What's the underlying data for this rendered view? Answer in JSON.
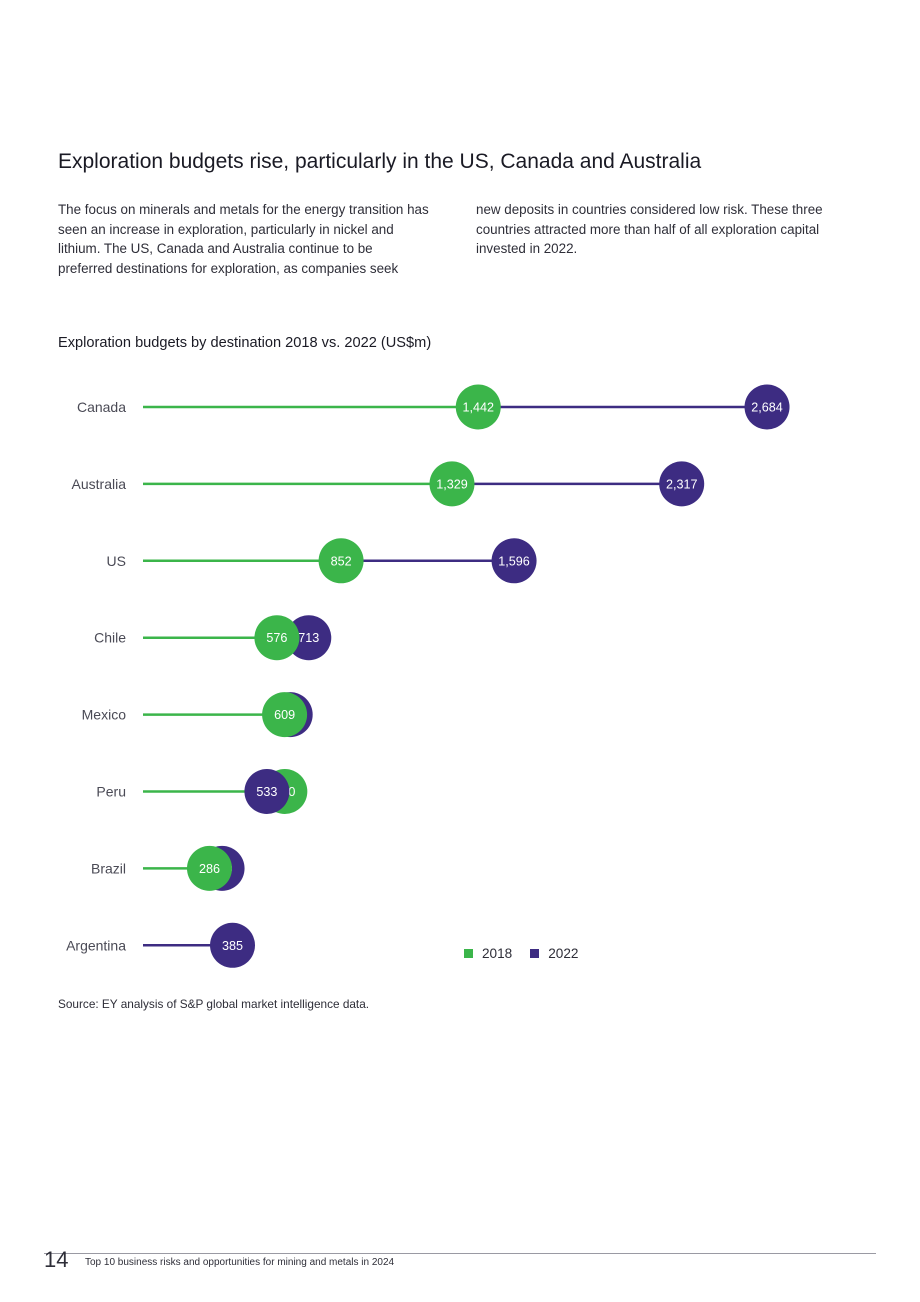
{
  "header": {
    "title": "Exploration budgets rise, particularly in the US, Canada and Australia"
  },
  "intro": {
    "col1": "The focus on minerals and metals for the energy transition has seen an increase in exploration, particularly in nickel and lithium. The US, Canada and Australia continue to be preferred destinations for exploration, as companies seek",
    "col2": "new deposits in countries considered low risk. These three countries attracted more than half of all exploration capital invested in 2022."
  },
  "chart_data": {
    "type": "dumbbell",
    "title": "Exploration budgets by destination 2018 vs. 2022 (US$m)",
    "categories": [
      "Canada",
      "Australia",
      "US",
      "Chile",
      "Mexico",
      "Peru",
      "Brazil",
      "Argentina"
    ],
    "series": [
      {
        "name": "2018",
        "color": "#3bb54a",
        "values": [
          1442,
          1329,
          852,
          576,
          609,
          610,
          286,
          null
        ],
        "labels": [
          "1,442",
          "1,329",
          "852",
          "576",
          "609",
          "610",
          "286",
          ""
        ]
      },
      {
        "name": "2022",
        "color": "#3d2c82",
        "values": [
          2684,
          2317,
          1596,
          713,
          633,
          533,
          340,
          385
        ],
        "labels": [
          "2,684",
          "2,317",
          "1,596",
          "713",
          "633",
          "533",
          "340",
          "385"
        ]
      }
    ],
    "xlim": [
      0,
      2700
    ],
    "grid": false,
    "legend_position": "bottom-right"
  },
  "source": "Source: EY analysis of S&P global market intelligence data.",
  "footer": {
    "page_number": "14",
    "text": "Top 10 business risks and opportunities for mining and metals in 2024"
  }
}
